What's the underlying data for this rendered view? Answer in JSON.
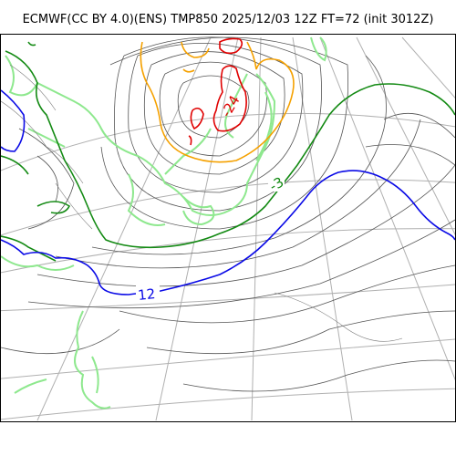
{
  "title": "ECMWF(CC BY 4.0)(ENS) TMP850 2025/12/03 12Z FT=72 (init 3012Z)",
  "contour_labels": {
    "minus24": "-24",
    "minus3": "-3",
    "plus12": "12"
  },
  "colors": {
    "minus24_contour": "#e00000",
    "minus12_contour": "#f5a100",
    "minus3_contour": "#138a13",
    "plus12_contour": "#0a0ae6",
    "coastline": "#8ee88e",
    "isobar": "#555555",
    "graticule": "#b0b0b0"
  }
}
